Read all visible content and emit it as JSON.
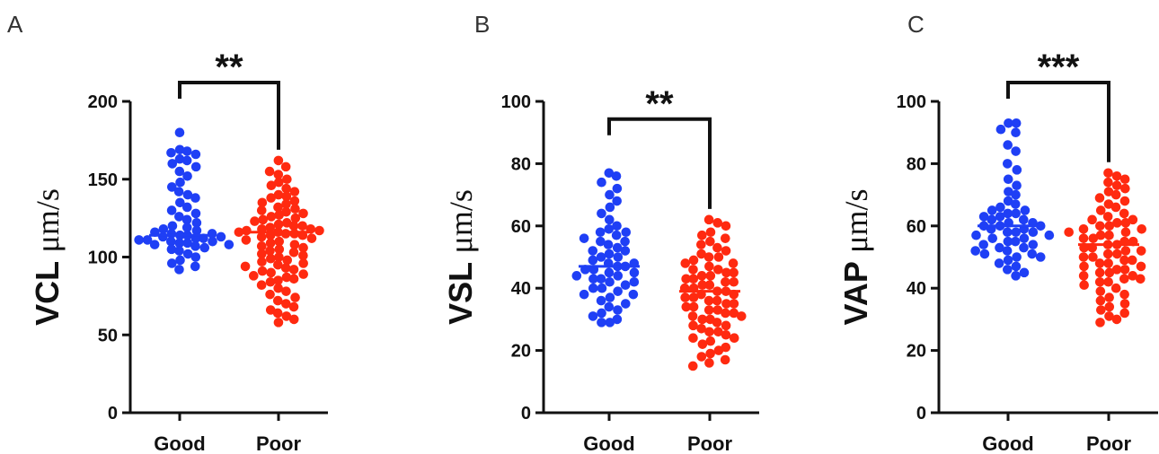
{
  "chart_data": [
    {
      "type": "scatter",
      "panel_label": "A",
      "ylabel_main": "VCL ",
      "ylabel_unit": "μm/s",
      "ylim": [
        0,
        200
      ],
      "yticks": [
        0,
        50,
        100,
        150,
        200
      ],
      "categories": [
        "Good",
        "Poor"
      ],
      "significance": "**",
      "grid": false,
      "series": [
        {
          "category": "Good",
          "color": "#1f3ff5",
          "mean": 114,
          "values": [
            180,
            169,
            168,
            167,
            166,
            163,
            162,
            160,
            158,
            155,
            152,
            148,
            145,
            142,
            140,
            138,
            135,
            132,
            130,
            128,
            126,
            124,
            122,
            120,
            119,
            118,
            117,
            116,
            115,
            115,
            114,
            114,
            113,
            113,
            112,
            112,
            111,
            111,
            110,
            110,
            109,
            109,
            108,
            108,
            107,
            106,
            105,
            104,
            102,
            100,
            98,
            96,
            94,
            92
          ]
        },
        {
          "category": "Poor",
          "color": "#ff2a10",
          "mean": 116,
          "values": [
            162,
            158,
            155,
            153,
            150,
            148,
            146,
            144,
            142,
            140,
            139,
            138,
            136,
            135,
            134,
            132,
            131,
            130,
            129,
            128,
            127,
            126,
            125,
            124,
            123,
            122,
            121,
            120,
            120,
            119,
            118,
            118,
            117,
            117,
            116,
            116,
            115,
            115,
            114,
            114,
            113,
            112,
            111,
            110,
            109,
            108,
            107,
            106,
            105,
            104,
            103,
            102,
            101,
            100,
            99,
            98,
            97,
            96,
            95,
            94,
            93,
            92,
            91,
            90,
            89,
            88,
            87,
            86,
            85,
            84,
            82,
            80,
            78,
            76,
            74,
            72,
            70,
            68,
            66,
            64,
            62,
            60,
            58
          ]
        }
      ]
    },
    {
      "type": "scatter",
      "panel_label": "B",
      "ylabel_main": "VSL ",
      "ylabel_unit": "μm/s",
      "ylim": [
        0,
        100
      ],
      "yticks": [
        0,
        20,
        40,
        60,
        80,
        100
      ],
      "categories": [
        "Good",
        "Poor"
      ],
      "significance": "**",
      "grid": false,
      "series": [
        {
          "category": "Good",
          "color": "#1f3ff5",
          "mean": 47,
          "values": [
            77,
            76,
            74,
            72,
            70,
            68,
            66,
            64,
            62,
            60,
            59,
            58,
            58,
            57,
            56,
            55,
            55,
            54,
            53,
            52,
            52,
            51,
            50,
            50,
            49,
            48,
            48,
            47,
            47,
            46,
            46,
            45,
            45,
            44,
            44,
            43,
            43,
            42,
            42,
            41,
            40,
            40,
            39,
            38,
            38,
            37,
            36,
            35,
            34,
            33,
            32,
            31,
            30,
            29,
            29
          ]
        },
        {
          "category": "Poor",
          "color": "#ff2a10",
          "mean": 39,
          "values": [
            62,
            61,
            60,
            58,
            57,
            56,
            55,
            54,
            53,
            52,
            51,
            50,
            50,
            49,
            48,
            48,
            47,
            46,
            46,
            45,
            45,
            44,
            44,
            43,
            43,
            42,
            42,
            41,
            41,
            40,
            40,
            39,
            39,
            38,
            38,
            37,
            37,
            36,
            36,
            35,
            35,
            34,
            34,
            33,
            33,
            32,
            32,
            31,
            31,
            30,
            30,
            29,
            28,
            28,
            27,
            26,
            26,
            25,
            24,
            24,
            23,
            22,
            21,
            20,
            19,
            18,
            17,
            16,
            15
          ]
        }
      ]
    },
    {
      "type": "scatter",
      "panel_label": "C",
      "ylabel_main": "VAP ",
      "ylabel_unit": "μm/s",
      "ylim": [
        0,
        100
      ],
      "yticks": [
        0,
        20,
        40,
        60,
        80,
        100
      ],
      "categories": [
        "Good",
        "Poor"
      ],
      "significance": "***",
      "grid": false,
      "series": [
        {
          "category": "Good",
          "color": "#1f3ff5",
          "mean": 60,
          "values": [
            93,
            93,
            91,
            90,
            86,
            84,
            80,
            78,
            75,
            73,
            71,
            70,
            68,
            67,
            66,
            65,
            65,
            64,
            64,
            63,
            63,
            62,
            62,
            61,
            61,
            60,
            60,
            60,
            59,
            59,
            58,
            58,
            58,
            57,
            57,
            56,
            56,
            55,
            55,
            54,
            54,
            53,
            53,
            52,
            52,
            51,
            51,
            50,
            50,
            49,
            48,
            47,
            46,
            45,
            44
          ]
        },
        {
          "category": "Poor",
          "color": "#ff2a10",
          "mean": 54,
          "values": [
            77,
            76,
            75,
            74,
            73,
            72,
            71,
            70,
            69,
            68,
            67,
            66,
            65,
            64,
            63,
            62,
            62,
            61,
            61,
            60,
            60,
            59,
            59,
            58,
            58,
            57,
            57,
            56,
            56,
            55,
            55,
            54,
            54,
            53,
            53,
            52,
            52,
            51,
            51,
            50,
            50,
            49,
            49,
            48,
            48,
            47,
            47,
            46,
            46,
            45,
            45,
            44,
            44,
            43,
            43,
            42,
            42,
            41,
            40,
            39,
            38,
            37,
            36,
            35,
            34,
            33,
            32,
            31,
            30,
            29
          ]
        }
      ]
    }
  ]
}
